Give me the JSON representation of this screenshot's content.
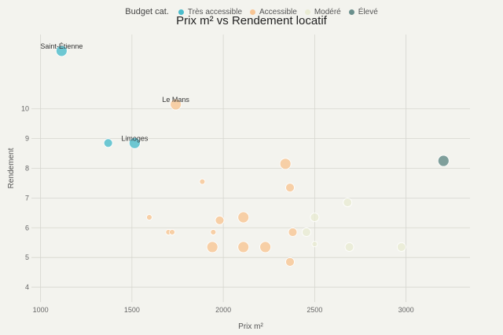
{
  "chart_data": {
    "type": "scatter",
    "title": "Prix m² vs Rendement locatif",
    "xlabel": "Prix m²",
    "ylabel": "Rendement",
    "xlim": [
      950,
      3350
    ],
    "ylim": [
      3.5,
      12.5
    ],
    "xticks": [
      1000,
      1500,
      2000,
      2500,
      3000
    ],
    "yticks": [
      4,
      5,
      6,
      7,
      8,
      9,
      10
    ],
    "grid": true,
    "legend_position": "top-center",
    "legend_title": "Budget cat.",
    "categories": [
      {
        "name": "Très accessible",
        "color": "#4bbccb"
      },
      {
        "name": "Accessible",
        "color": "#f8c594"
      },
      {
        "name": "Modéré",
        "color": "#e9ebd3"
      },
      {
        "name": "Élevé",
        "color": "#6a8f8c"
      }
    ],
    "points": [
      {
        "x": 1115,
        "y": 11.95,
        "cat": 0,
        "size": 3,
        "label": "Saint-Étienne"
      },
      {
        "x": 1370,
        "y": 8.85,
        "cat": 0,
        "size": 2,
        "label": ""
      },
      {
        "x": 1515,
        "y": 8.85,
        "cat": 0,
        "size": 3,
        "label": "Limoges"
      },
      {
        "x": 1740,
        "y": 10.15,
        "cat": 1,
        "size": 3,
        "label": "Le Mans"
      },
      {
        "x": 1595,
        "y": 6.35,
        "cat": 1,
        "size": 1,
        "label": ""
      },
      {
        "x": 1700,
        "y": 5.85,
        "cat": 1,
        "size": 1,
        "label": ""
      },
      {
        "x": 1720,
        "y": 5.85,
        "cat": 1,
        "size": 1,
        "label": ""
      },
      {
        "x": 1885,
        "y": 7.55,
        "cat": 1,
        "size": 1,
        "label": ""
      },
      {
        "x": 1945,
        "y": 5.85,
        "cat": 1,
        "size": 1,
        "label": ""
      },
      {
        "x": 1940,
        "y": 5.35,
        "cat": 1,
        "size": 3,
        "label": ""
      },
      {
        "x": 1980,
        "y": 6.25,
        "cat": 1,
        "size": 2,
        "label": ""
      },
      {
        "x": 2110,
        "y": 6.35,
        "cat": 1,
        "size": 3,
        "label": ""
      },
      {
        "x": 2110,
        "y": 5.35,
        "cat": 1,
        "size": 3,
        "label": ""
      },
      {
        "x": 2230,
        "y": 5.35,
        "cat": 1,
        "size": 3,
        "label": ""
      },
      {
        "x": 2340,
        "y": 8.15,
        "cat": 1,
        "size": 3,
        "label": ""
      },
      {
        "x": 2365,
        "y": 7.35,
        "cat": 1,
        "size": 2,
        "label": ""
      },
      {
        "x": 2380,
        "y": 5.85,
        "cat": 1,
        "size": 2,
        "label": ""
      },
      {
        "x": 2365,
        "y": 4.85,
        "cat": 1,
        "size": 2,
        "label": ""
      },
      {
        "x": 2455,
        "y": 5.85,
        "cat": 2,
        "size": 2,
        "label": ""
      },
      {
        "x": 2500,
        "y": 6.35,
        "cat": 2,
        "size": 2,
        "label": ""
      },
      {
        "x": 2500,
        "y": 5.45,
        "cat": 2,
        "size": 1,
        "label": ""
      },
      {
        "x": 2680,
        "y": 6.85,
        "cat": 2,
        "size": 2,
        "label": ""
      },
      {
        "x": 2690,
        "y": 5.35,
        "cat": 2,
        "size": 2,
        "label": ""
      },
      {
        "x": 2975,
        "y": 5.35,
        "cat": 2,
        "size": 2,
        "label": ""
      },
      {
        "x": 3205,
        "y": 8.25,
        "cat": 3,
        "size": 3,
        "label": ""
      }
    ]
  }
}
